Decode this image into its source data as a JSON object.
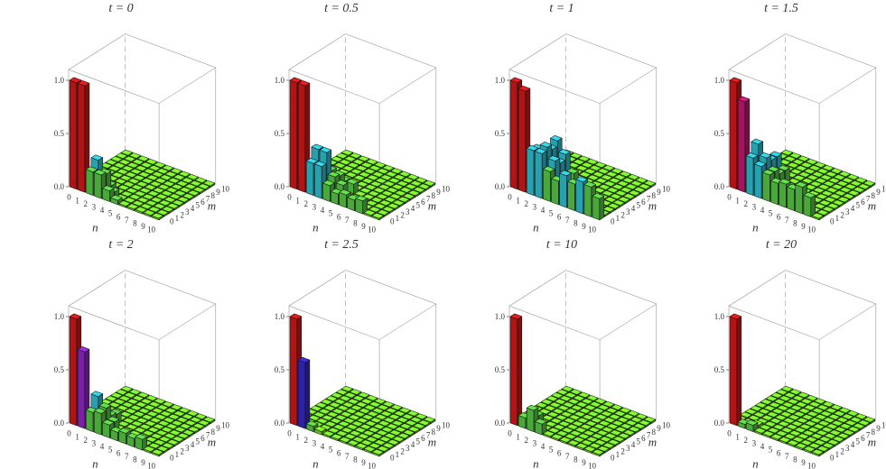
{
  "figure": {
    "colors": {
      "background": "#ffffff",
      "box_line": "#9a9a9a",
      "bar_edge": "#111111",
      "floor": "#7ff02a",
      "low_bar": "#5fd64a",
      "red": "#e11a1a",
      "magenta": "#d11a7a",
      "violet": "#9a2ad6",
      "blue": "#3a2ad6",
      "cyan": "#33cfe0",
      "text": "#333333"
    }
  },
  "chart_data": [
    {
      "type": "bar3d",
      "title": "t = 0",
      "zticks": [
        "0.0",
        "0.5",
        "1.0"
      ],
      "xlabel": "n",
      "ylabel": "m",
      "xticks": [
        "0",
        "1",
        "2",
        "3",
        "4",
        "5",
        "6",
        "7",
        "8",
        "9",
        "10"
      ],
      "yticks": [
        "0",
        "1",
        "2",
        "3",
        "4",
        "5",
        "6",
        "7",
        "8",
        "9",
        "10"
      ],
      "zlim": [
        0,
        1
      ],
      "cells": [
        {
          "n": 0,
          "m": 0,
          "v": 1.0
        },
        {
          "n": 1,
          "m": 0,
          "v": 1.0
        },
        {
          "n": 2,
          "m": 0,
          "v": 0.22
        },
        {
          "n": 3,
          "m": 0,
          "v": 0.22
        },
        {
          "n": 4,
          "m": 0,
          "v": 0.1
        },
        {
          "n": 5,
          "m": 0,
          "v": 0.04
        },
        {
          "n": 2,
          "m": 1,
          "v": 0.3
        },
        {
          "n": 3,
          "m": 1,
          "v": 0.2
        },
        {
          "n": 4,
          "m": 1,
          "v": 0.06
        },
        {
          "n": 2,
          "m": 2,
          "v": 0.1
        },
        {
          "n": 3,
          "m": 2,
          "v": 0.06
        }
      ]
    },
    {
      "type": "bar3d",
      "title": "t = 0.5",
      "zticks": [
        "0.0",
        "0.5",
        "1.0"
      ],
      "xlabel": "n",
      "ylabel": "m",
      "xticks": [
        "0",
        "1",
        "2",
        "3",
        "4",
        "5",
        "6",
        "7",
        "8",
        "9",
        "10"
      ],
      "yticks": [
        "0",
        "1",
        "2",
        "3",
        "4",
        "5",
        "6",
        "7",
        "8",
        "9",
        "10"
      ],
      "zlim": [
        0,
        1
      ],
      "cells": [
        {
          "n": 0,
          "m": 0,
          "v": 1.0
        },
        {
          "n": 1,
          "m": 0,
          "v": 1.0
        },
        {
          "n": 2,
          "m": 0,
          "v": 0.3
        },
        {
          "n": 3,
          "m": 0,
          "v": 0.3
        },
        {
          "n": 4,
          "m": 0,
          "v": 0.15
        },
        {
          "n": 5,
          "m": 0,
          "v": 0.1
        },
        {
          "n": 6,
          "m": 0,
          "v": 0.12
        },
        {
          "n": 7,
          "m": 0,
          "v": 0.1
        },
        {
          "n": 8,
          "m": 0,
          "v": 0.12
        },
        {
          "n": 2,
          "m": 1,
          "v": 0.4
        },
        {
          "n": 3,
          "m": 1,
          "v": 0.4
        },
        {
          "n": 4,
          "m": 1,
          "v": 0.2
        },
        {
          "n": 5,
          "m": 1,
          "v": 0.15
        },
        {
          "n": 2,
          "m": 2,
          "v": 0.15
        },
        {
          "n": 3,
          "m": 2,
          "v": 0.2
        },
        {
          "n": 4,
          "m": 2,
          "v": 0.18
        },
        {
          "n": 3,
          "m": 3,
          "v": 0.12
        },
        {
          "n": 4,
          "m": 3,
          "v": 0.1
        },
        {
          "n": 5,
          "m": 3,
          "v": 0.1
        }
      ]
    },
    {
      "type": "bar3d",
      "title": "t = 1",
      "zticks": [
        "0.0",
        "0.5",
        "1.0"
      ],
      "xlabel": "n",
      "ylabel": "m",
      "xticks": [
        "0",
        "1",
        "2",
        "3",
        "4",
        "5",
        "6",
        "7",
        "8",
        "9",
        "10"
      ],
      "yticks": [
        "0",
        "1",
        "2",
        "3",
        "4",
        "5",
        "6",
        "7",
        "8",
        "9",
        "10"
      ],
      "zlim": [
        0,
        1
      ],
      "cells": [
        {
          "n": 0,
          "m": 0,
          "v": 1.0
        },
        {
          "n": 1,
          "m": 0,
          "v": 0.95
        },
        {
          "n": 2,
          "m": 0,
          "v": 0.42
        },
        {
          "n": 3,
          "m": 0,
          "v": 0.42
        },
        {
          "n": 4,
          "m": 0,
          "v": 0.28
        },
        {
          "n": 5,
          "m": 0,
          "v": 0.22
        },
        {
          "n": 6,
          "m": 0,
          "v": 0.3
        },
        {
          "n": 7,
          "m": 0,
          "v": 0.25
        },
        {
          "n": 8,
          "m": 0,
          "v": 0.3
        },
        {
          "n": 9,
          "m": 0,
          "v": 0.28
        },
        {
          "n": 10,
          "m": 0,
          "v": 0.2
        },
        {
          "n": 2,
          "m": 1,
          "v": 0.4
        },
        {
          "n": 3,
          "m": 1,
          "v": 0.45
        },
        {
          "n": 4,
          "m": 1,
          "v": 0.35
        },
        {
          "n": 5,
          "m": 1,
          "v": 0.2
        },
        {
          "n": 6,
          "m": 1,
          "v": 0.18
        },
        {
          "n": 2,
          "m": 2,
          "v": 0.3
        },
        {
          "n": 3,
          "m": 2,
          "v": 0.4
        },
        {
          "n": 4,
          "m": 2,
          "v": 0.3
        },
        {
          "n": 3,
          "m": 3,
          "v": 0.45
        },
        {
          "n": 4,
          "m": 3,
          "v": 0.35
        },
        {
          "n": 5,
          "m": 3,
          "v": 0.2
        }
      ]
    },
    {
      "type": "bar3d",
      "title": "t = 1.5",
      "zticks": [
        "0.0",
        "0.5",
        "1.0"
      ],
      "xlabel": "n",
      "ylabel": "m",
      "xticks": [
        "0",
        "1",
        "2",
        "3",
        "4",
        "5",
        "6",
        "7",
        "8",
        "9",
        "10"
      ],
      "yticks": [
        "0",
        "1",
        "2",
        "3",
        "4",
        "5",
        "6",
        "7",
        "8",
        "9",
        "10"
      ],
      "zlim": [
        0,
        1
      ],
      "cells": [
        {
          "n": 0,
          "m": 0,
          "v": 1.0
        },
        {
          "n": 1,
          "m": 0,
          "v": 0.85
        },
        {
          "n": 2,
          "m": 0,
          "v": 0.35
        },
        {
          "n": 3,
          "m": 0,
          "v": 0.3
        },
        {
          "n": 4,
          "m": 0,
          "v": 0.25
        },
        {
          "n": 5,
          "m": 0,
          "v": 0.2
        },
        {
          "n": 6,
          "m": 0,
          "v": 0.22
        },
        {
          "n": 7,
          "m": 0,
          "v": 0.2
        },
        {
          "n": 8,
          "m": 0,
          "v": 0.25
        },
        {
          "n": 9,
          "m": 0,
          "v": 0.18
        },
        {
          "n": 2,
          "m": 1,
          "v": 0.45
        },
        {
          "n": 3,
          "m": 1,
          "v": 0.35
        },
        {
          "n": 4,
          "m": 1,
          "v": 0.25
        },
        {
          "n": 5,
          "m": 1,
          "v": 0.15
        },
        {
          "n": 2,
          "m": 2,
          "v": 0.25
        },
        {
          "n": 3,
          "m": 2,
          "v": 0.3
        },
        {
          "n": 4,
          "m": 2,
          "v": 0.2
        },
        {
          "n": 3,
          "m": 3,
          "v": 0.3
        },
        {
          "n": 4,
          "m": 3,
          "v": 0.2
        }
      ]
    },
    {
      "type": "bar3d",
      "title": "t = 2",
      "zticks": [
        "0.0",
        "0.5",
        "1.0"
      ],
      "xlabel": "n",
      "ylabel": "m",
      "xticks": [
        "0",
        "1",
        "2",
        "3",
        "4",
        "5",
        "6",
        "7",
        "8",
        "9",
        "10"
      ],
      "yticks": [
        "0",
        "1",
        "2",
        "3",
        "4",
        "5",
        "6",
        "7",
        "8",
        "9",
        "10"
      ],
      "zlim": [
        0,
        1
      ],
      "cells": [
        {
          "n": 0,
          "m": 0,
          "v": 1.0
        },
        {
          "n": 1,
          "m": 0,
          "v": 0.72
        },
        {
          "n": 2,
          "m": 0,
          "v": 0.18
        },
        {
          "n": 3,
          "m": 0,
          "v": 0.2
        },
        {
          "n": 4,
          "m": 0,
          "v": 0.12
        },
        {
          "n": 5,
          "m": 0,
          "v": 0.08
        },
        {
          "n": 6,
          "m": 0,
          "v": 0.1
        },
        {
          "n": 7,
          "m": 0,
          "v": 0.08
        },
        {
          "n": 8,
          "m": 0,
          "v": 0.1
        },
        {
          "n": 2,
          "m": 1,
          "v": 0.3
        },
        {
          "n": 3,
          "m": 1,
          "v": 0.22
        },
        {
          "n": 4,
          "m": 1,
          "v": 0.12
        },
        {
          "n": 2,
          "m": 2,
          "v": 0.15
        },
        {
          "n": 3,
          "m": 2,
          "v": 0.12
        },
        {
          "n": 3,
          "m": 3,
          "v": 0.1
        }
      ]
    },
    {
      "type": "bar3d",
      "title": "t = 2.5",
      "zticks": [
        "0.0",
        "0.5",
        "1.0"
      ],
      "xlabel": "n",
      "ylabel": "m",
      "xticks": [
        "0",
        "1",
        "2",
        "3",
        "4",
        "5",
        "6",
        "7",
        "8",
        "9",
        "10"
      ],
      "yticks": [
        "0",
        "1",
        "2",
        "3",
        "4",
        "5",
        "6",
        "7",
        "8",
        "9",
        "10"
      ],
      "zlim": [
        0,
        1
      ],
      "cells": [
        {
          "n": 0,
          "m": 0,
          "v": 1.0
        },
        {
          "n": 1,
          "m": 0,
          "v": 0.62
        },
        {
          "n": 2,
          "m": 0,
          "v": 0.05
        },
        {
          "n": 3,
          "m": 0,
          "v": 0.03
        }
      ]
    },
    {
      "type": "bar3d",
      "title": "t = 10",
      "zticks": [
        "0.0",
        "0.5",
        "1.0"
      ],
      "xlabel": "n",
      "ylabel": "m",
      "xticks": [
        "0",
        "1",
        "2",
        "3",
        "4",
        "5",
        "6",
        "7",
        "8",
        "9",
        "10"
      ],
      "yticks": [
        "0",
        "1",
        "2",
        "3",
        "4",
        "5",
        "6",
        "7",
        "8",
        "9",
        "10"
      ],
      "zlim": [
        0,
        1
      ],
      "cells": [
        {
          "n": 0,
          "m": 0,
          "v": 1.0
        },
        {
          "n": 1,
          "m": 0,
          "v": 0.1
        },
        {
          "n": 2,
          "m": 0,
          "v": 0.2
        },
        {
          "n": 3,
          "m": 0,
          "v": 0.1
        },
        {
          "n": 2,
          "m": 1,
          "v": 0.12
        }
      ]
    },
    {
      "type": "bar3d",
      "title": "t = 20",
      "zticks": [
        "0.0",
        "0.5",
        "1.0"
      ],
      "xlabel": "n",
      "ylabel": "m",
      "xticks": [
        "0",
        "1",
        "2",
        "3",
        "4",
        "5",
        "6",
        "7",
        "8",
        "9",
        "10"
      ],
      "yticks": [
        "0",
        "1",
        "2",
        "3",
        "4",
        "5",
        "6",
        "7",
        "8",
        "9",
        "10"
      ],
      "zlim": [
        0,
        1
      ],
      "cells": [
        {
          "n": 0,
          "m": 0,
          "v": 1.0
        },
        {
          "n": 1,
          "m": 0,
          "v": 0.04
        },
        {
          "n": 2,
          "m": 0,
          "v": 0.06
        },
        {
          "n": 2,
          "m": 1,
          "v": 0.03
        }
      ]
    }
  ]
}
